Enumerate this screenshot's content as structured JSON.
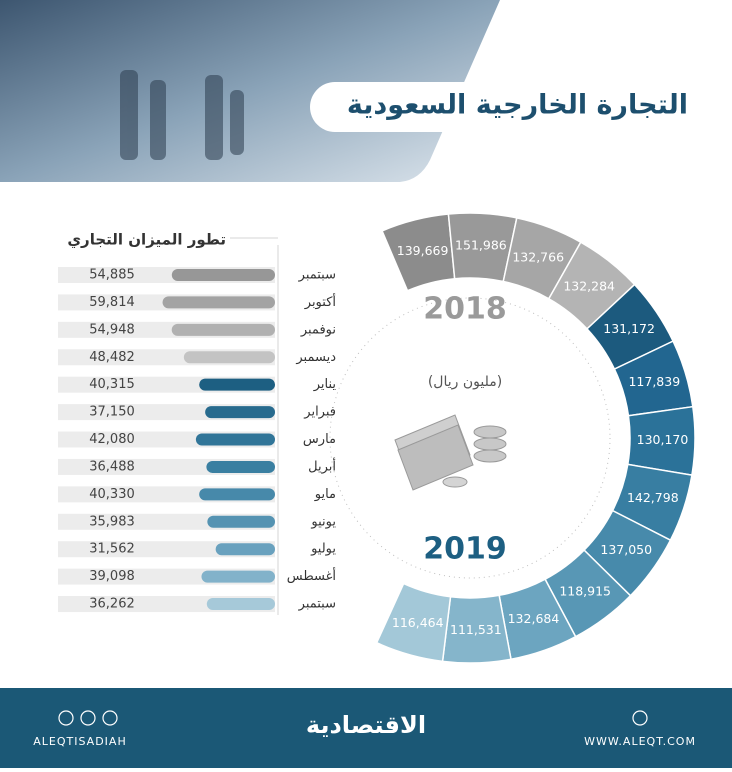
{
  "header": {
    "title": "التجارة الخارجية السعودية"
  },
  "chart_data": [
    {
      "type": "bar",
      "orientation": "horizontal",
      "title": "تطور الميزان التجاري",
      "categories": [
        "سبتمبر",
        "أكتوبر",
        "نوفمبر",
        "ديسمبر",
        "يناير",
        "فبراير",
        "مارس",
        "أبريل",
        "مايو",
        "يونيو",
        "يوليو",
        "أغسطس",
        "سبتمبر"
      ],
      "values": [
        54885,
        59814,
        54948,
        48482,
        40315,
        37150,
        42080,
        36488,
        40330,
        35983,
        31562,
        39098,
        36262
      ],
      "value_labels": [
        "54,885",
        "59,814",
        "54,948",
        "48,482",
        "40,315",
        "37,150",
        "42,080",
        "36,488",
        "40,330",
        "35,983",
        "31,562",
        "39,098",
        "36,262"
      ],
      "colors": [
        "#979797",
        "#a3a3a3",
        "#b1b1b1",
        "#c3c3c3",
        "#1d5f82",
        "#286b8e",
        "#317598",
        "#3a7fa1",
        "#4789aa",
        "#5593b2",
        "#69a1be",
        "#82b2ca",
        "#a6c9d9"
      ]
    },
    {
      "type": "donut",
      "values": [
        139669,
        151986,
        132766,
        132284,
        131172,
        117839,
        130170,
        142798,
        137050,
        118915,
        132684,
        111531,
        116464
      ],
      "value_labels": [
        "139,669",
        "151,986",
        "132,766",
        "132,284",
        "131,172",
        "117,839",
        "130,170",
        "142,798",
        "137,050",
        "118,915",
        "132,684",
        "111,531",
        "116,464"
      ],
      "colors": [
        "#8c8c8c",
        "#999999",
        "#a6a6a6",
        "#b4b4b4",
        "#1c5a7e",
        "#226690",
        "#2b7299",
        "#387ea2",
        "#478aab",
        "#5897b5",
        "#6ca5c0",
        "#85b5cb",
        "#a3c8d8"
      ],
      "annotations": [
        "2018",
        "(مليون ريال)",
        "2019"
      ]
    }
  ],
  "footer": {
    "brand": "الاقتصادية",
    "handle": "ALEQTISADIAH",
    "website": "WWW.ALEQT.COM"
  }
}
